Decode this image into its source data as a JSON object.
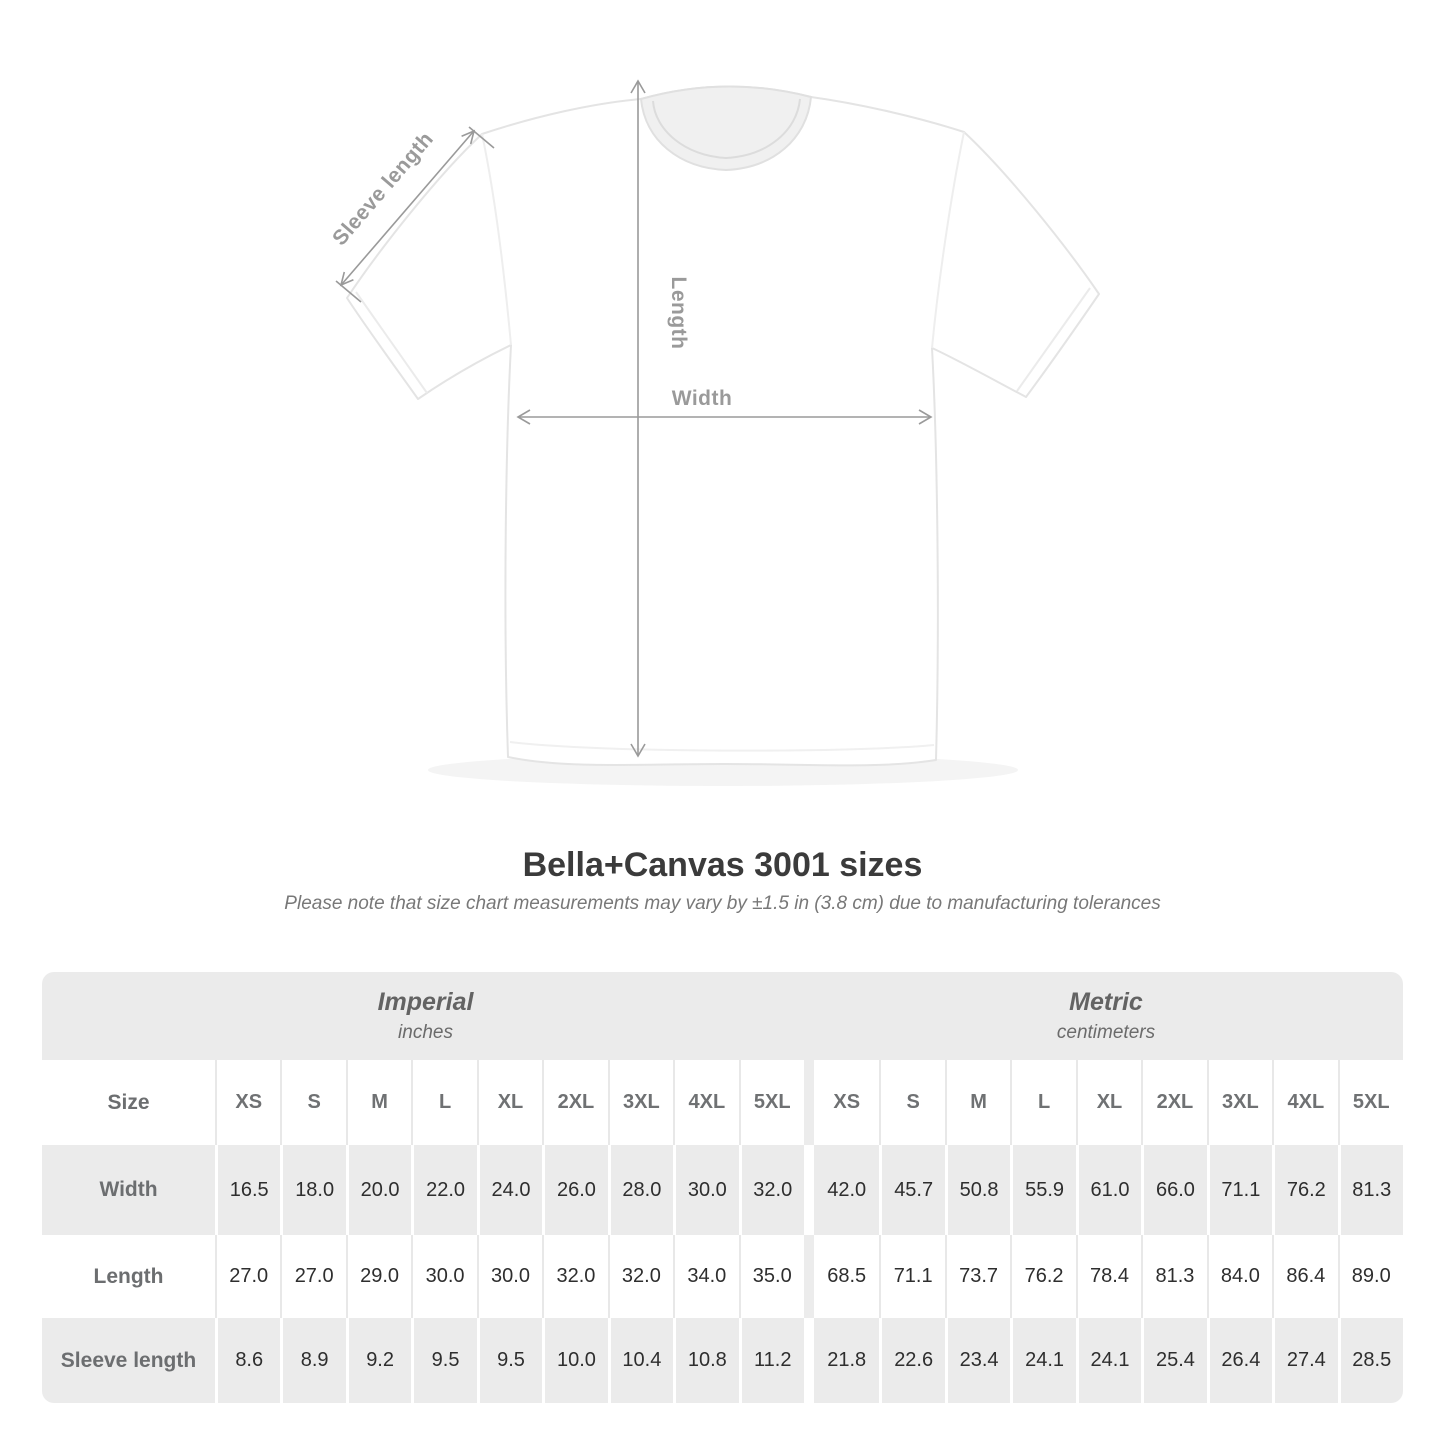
{
  "diagram": {
    "sleeve_length_label": "Sleeve length",
    "length_label": "Length",
    "width_label": "Width"
  },
  "title": "Bella+Canvas 3001 sizes",
  "subtitle": "Please note that size chart measurements may vary by ±1.5 in (3.8 cm) due to manufacturing tolerances",
  "table": {
    "unit_groups": [
      {
        "label": "Imperial",
        "sublabel": "inches"
      },
      {
        "label": "Metric",
        "sublabel": "centimeters"
      }
    ],
    "size_row_label": "Size",
    "sizes": [
      "XS",
      "S",
      "M",
      "L",
      "XL",
      "2XL",
      "3XL",
      "4XL",
      "5XL"
    ],
    "rows": [
      {
        "label": "Width",
        "imperial": [
          "16.5",
          "18.0",
          "20.0",
          "22.0",
          "24.0",
          "26.0",
          "28.0",
          "30.0",
          "32.0"
        ],
        "metric": [
          "42.0",
          "45.7",
          "50.8",
          "55.9",
          "61.0",
          "66.0",
          "71.1",
          "76.2",
          "81.3"
        ]
      },
      {
        "label": "Length",
        "imperial": [
          "27.0",
          "27.0",
          "29.0",
          "30.0",
          "30.0",
          "32.0",
          "32.0",
          "34.0",
          "35.0"
        ],
        "metric": [
          "68.5",
          "71.1",
          "73.7",
          "76.2",
          "78.4",
          "81.3",
          "84.0",
          "86.4",
          "89.0"
        ]
      },
      {
        "label": "Sleeve length",
        "imperial": [
          "8.6",
          "8.9",
          "9.2",
          "9.5",
          "9.5",
          "10.0",
          "10.4",
          "10.8",
          "11.2"
        ],
        "metric": [
          "21.8",
          "22.6",
          "23.4",
          "24.1",
          "24.1",
          "25.4",
          "26.4",
          "27.4",
          "28.5"
        ]
      }
    ]
  },
  "chart_data": {
    "type": "table",
    "title": "Bella+Canvas 3001 sizes",
    "note": "Please note that size chart measurements may vary by ±1.5 in (3.8 cm) due to manufacturing tolerances",
    "column_groups": [
      {
        "name": "Imperial",
        "unit": "inches",
        "sizes": [
          "XS",
          "S",
          "M",
          "L",
          "XL",
          "2XL",
          "3XL",
          "4XL",
          "5XL"
        ]
      },
      {
        "name": "Metric",
        "unit": "centimeters",
        "sizes": [
          "XS",
          "S",
          "M",
          "L",
          "XL",
          "2XL",
          "3XL",
          "4XL",
          "5XL"
        ]
      }
    ],
    "measurements": [
      {
        "name": "Width",
        "imperial_inches": [
          16.5,
          18.0,
          20.0,
          22.0,
          24.0,
          26.0,
          28.0,
          30.0,
          32.0
        ],
        "metric_cm": [
          42.0,
          45.7,
          50.8,
          55.9,
          61.0,
          66.0,
          71.1,
          76.2,
          81.3
        ]
      },
      {
        "name": "Length",
        "imperial_inches": [
          27.0,
          27.0,
          29.0,
          30.0,
          30.0,
          32.0,
          32.0,
          34.0,
          35.0
        ],
        "metric_cm": [
          68.5,
          71.1,
          73.7,
          76.2,
          78.4,
          81.3,
          84.0,
          86.4,
          89.0
        ]
      },
      {
        "name": "Sleeve length",
        "imperial_inches": [
          8.6,
          8.9,
          9.2,
          9.5,
          9.5,
          10.0,
          10.4,
          10.8,
          11.2
        ],
        "metric_cm": [
          21.8,
          22.6,
          23.4,
          24.1,
          24.1,
          25.4,
          26.4,
          27.4,
          28.5
        ]
      }
    ]
  }
}
